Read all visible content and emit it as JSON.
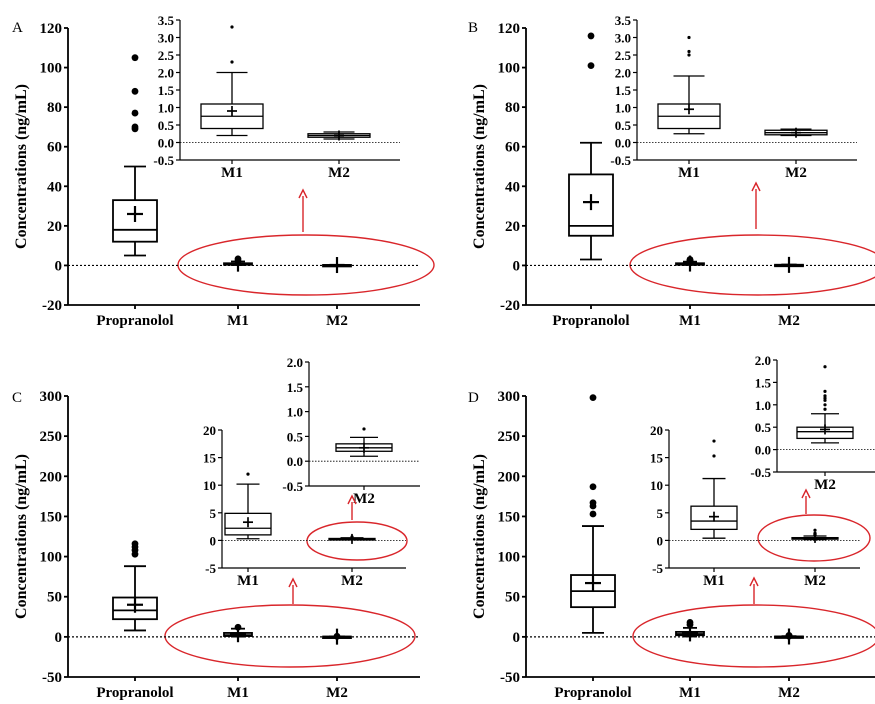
{
  "colors": {
    "box": "#000000",
    "arrow": "#d9262b",
    "ellipse": "#d9262b",
    "zero_line": "#000000"
  },
  "chart_data": [
    {
      "panel": "A",
      "type": "boxplot",
      "ylabel": "Concentrations (ng/mL)",
      "categories": [
        "Propranolol",
        "M1",
        "M2"
      ],
      "yticks": [
        -20,
        0,
        20,
        40,
        60,
        80,
        100,
        120
      ],
      "ylim": [
        -20,
        120
      ],
      "boxes": [
        {
          "min": 5,
          "q1": 12,
          "median": 18,
          "q3": 33,
          "max": 50,
          "mean": 26,
          "outliers": [
            69,
            70,
            77,
            88,
            105
          ]
        },
        {
          "min": 0.2,
          "q1": 0.4,
          "median": 0.75,
          "q3": 1.1,
          "max": 2.0,
          "mean": 0.9,
          "outliers": [
            2.3,
            3.3
          ]
        },
        {
          "min": 0.1,
          "q1": 0.15,
          "median": 0.2,
          "q3": 0.25,
          "max": 0.3,
          "mean": 0.2,
          "outliers": []
        }
      ],
      "inset": {
        "categories": [
          "M1",
          "M2"
        ],
        "yticks": [
          -0.5,
          0.0,
          0.5,
          1.0,
          1.5,
          2.0,
          2.5,
          3.0,
          3.5
        ],
        "ylim": [
          -0.5,
          3.5
        ]
      }
    },
    {
      "panel": "B",
      "type": "boxplot",
      "ylabel": "Concentrations (ng/mL)",
      "categories": [
        "Propranolol",
        "M1",
        "M2"
      ],
      "yticks": [
        -20,
        0,
        20,
        40,
        60,
        80,
        100,
        120
      ],
      "ylim": [
        -20,
        120
      ],
      "boxes": [
        {
          "min": 3,
          "q1": 15,
          "median": 20,
          "q3": 46,
          "max": 62,
          "mean": 32,
          "outliers": [
            101,
            116
          ]
        },
        {
          "min": 0.25,
          "q1": 0.4,
          "median": 0.75,
          "q3": 1.1,
          "max": 1.9,
          "mean": 0.95,
          "outliers": [
            2.5,
            2.6,
            3.0
          ]
        },
        {
          "min": 0.2,
          "q1": 0.22,
          "median": 0.28,
          "q3": 0.35,
          "max": 0.38,
          "mean": 0.28,
          "outliers": []
        }
      ],
      "inset": {
        "categories": [
          "M1",
          "M2"
        ],
        "yticks": [
          -0.5,
          0.0,
          0.5,
          1.0,
          1.5,
          2.0,
          2.5,
          3.0,
          3.5
        ],
        "ylim": [
          -0.5,
          3.5
        ]
      }
    },
    {
      "panel": "C",
      "type": "boxplot",
      "ylabel": "Concentrations (ng/mL)",
      "categories": [
        "Propranolol",
        "M1",
        "M2"
      ],
      "yticks": [
        -50,
        0,
        50,
        100,
        150,
        200,
        250,
        300
      ],
      "ylim": [
        -50,
        300
      ],
      "boxes": [
        {
          "min": 8,
          "q1": 22,
          "median": 33,
          "q3": 49,
          "max": 88,
          "mean": 40,
          "outliers": [
            103,
            108,
            112,
            116
          ]
        },
        {
          "min": 0.3,
          "q1": 1.0,
          "median": 2.2,
          "q3": 4.9,
          "max": 10.2,
          "mean": 3.3,
          "outliers": [
            12
          ]
        },
        {
          "min": 0.1,
          "q1": 0.2,
          "median": 0.27,
          "q3": 0.35,
          "max": 0.48,
          "mean": 0.27,
          "outliers": [
            0.65
          ]
        }
      ],
      "inset": {
        "categories": [
          "M1",
          "M2"
        ],
        "yticks": [
          -5,
          0,
          5,
          10,
          15,
          20
        ],
        "ylim": [
          -5,
          20
        ]
      },
      "inset2": {
        "categories": [
          "M2"
        ],
        "yticks": [
          -0.5,
          0.0,
          0.5,
          1.0,
          1.5,
          2.0
        ],
        "ylim": [
          -0.5,
          2.0
        ]
      }
    },
    {
      "panel": "D",
      "type": "boxplot",
      "ylabel": "Concentrations (ng/mL)",
      "categories": [
        "Propranolol",
        "M1",
        "M2"
      ],
      "yticks": [
        -50,
        0,
        50,
        100,
        150,
        200,
        250,
        300
      ],
      "ylim": [
        -50,
        300
      ],
      "boxes": [
        {
          "min": 5,
          "q1": 37,
          "median": 57,
          "q3": 77,
          "max": 138,
          "mean": 67,
          "outliers": [
            153,
            163,
            167,
            187,
            298
          ]
        },
        {
          "min": 0.4,
          "q1": 2.0,
          "median": 3.5,
          "q3": 6.2,
          "max": 11.2,
          "mean": 4.3,
          "outliers": [
            15.3,
            18.0
          ]
        },
        {
          "min": 0.15,
          "q1": 0.25,
          "median": 0.4,
          "q3": 0.5,
          "max": 0.8,
          "mean": 0.45,
          "outliers": [
            0.9,
            1.0,
            1.1,
            1.15,
            1.2,
            1.3,
            1.85
          ]
        }
      ],
      "inset": {
        "categories": [
          "M1",
          "M2"
        ],
        "yticks": [
          -5,
          0,
          5,
          10,
          15,
          20
        ],
        "ylim": [
          -5,
          20
        ]
      },
      "inset2": {
        "categories": [
          "M2"
        ],
        "yticks": [
          -0.5,
          0.0,
          0.5,
          1.0,
          1.5,
          2.0
        ],
        "ylim": [
          -0.5,
          2.0
        ]
      }
    }
  ]
}
